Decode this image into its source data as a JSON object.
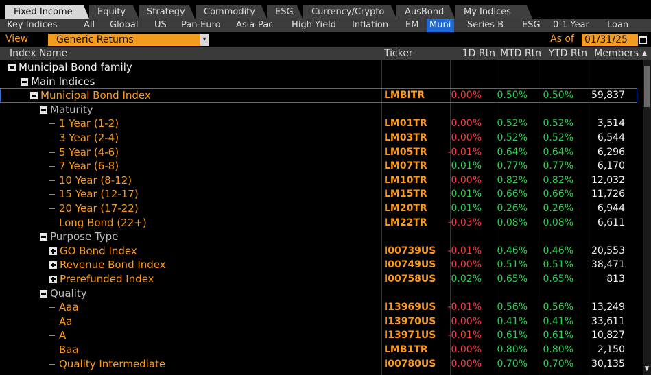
{
  "tabs": [
    "Fixed Income",
    "Equity",
    "Strategy",
    "Commodity",
    "ESG",
    "Currency/Crypto",
    "AusBond",
    "My Indices"
  ],
  "active_tab": "Fixed Income",
  "subnav": [
    "Key Indices",
    "All",
    "Global",
    "US",
    "Pan-Euro",
    "Asia-Pac",
    "High Yield",
    "Inflation",
    "EM",
    "Muni",
    "Series-B",
    "ESG",
    "0-1 Year",
    "Loan"
  ],
  "active_subnav": "Muni",
  "view": {
    "label": "View",
    "value": "Generic Returns"
  },
  "asof": {
    "label": "As of",
    "date": "01/31/25"
  },
  "columns": {
    "name": "Index Name",
    "ticker": "Ticker",
    "d1": "1D Rtn",
    "mtd": "MTD Rtn",
    "ytd": "YTD Rtn",
    "members": "Members"
  },
  "rows": [
    {
      "name": "Municipal Bond family",
      "level": 0,
      "expander": "minus",
      "color": "white"
    },
    {
      "name": "Main Indices",
      "level": 1,
      "expander": "minus",
      "color": "white"
    },
    {
      "name": "Municipal Bond Index",
      "level": 2,
      "expander": "minus",
      "color": "orange",
      "ticker": "LMBITR",
      "d1": "0.00%",
      "mtd": "0.50%",
      "ytd": "0.50%",
      "members": "59,837",
      "selected": true
    },
    {
      "name": "Maturity",
      "level": 3,
      "expander": "minus",
      "color": "grey"
    },
    {
      "name": "1 Year (1-2)",
      "level": 4,
      "color": "orange",
      "ticker": "LM01TR",
      "d1": "0.00%",
      "mtd": "0.52%",
      "ytd": "0.52%",
      "members": "3,514"
    },
    {
      "name": "3 Year (2-4)",
      "level": 4,
      "color": "orange",
      "ticker": "LM03TR",
      "d1": "0.00%",
      "mtd": "0.52%",
      "ytd": "0.52%",
      "members": "6,544"
    },
    {
      "name": "5 Year (4-6)",
      "level": 4,
      "color": "orange",
      "ticker": "LM05TR",
      "d1": "-0.01%",
      "mtd": "0.64%",
      "ytd": "0.64%",
      "members": "6,296"
    },
    {
      "name": "7 Year (6-8)",
      "level": 4,
      "color": "orange",
      "ticker": "LM07TR",
      "d1": "0.01%",
      "mtd": "0.77%",
      "ytd": "0.77%",
      "members": "6,170"
    },
    {
      "name": "10 Year (8-12)",
      "level": 4,
      "color": "orange",
      "ticker": "LM10TR",
      "d1": "0.00%",
      "mtd": "0.82%",
      "ytd": "0.82%",
      "members": "12,032"
    },
    {
      "name": "15 Year (12-17)",
      "level": 4,
      "color": "orange",
      "ticker": "LM15TR",
      "d1": "0.01%",
      "mtd": "0.66%",
      "ytd": "0.66%",
      "members": "11,726"
    },
    {
      "name": "20 Year (17-22)",
      "level": 4,
      "color": "orange",
      "ticker": "LM20TR",
      "d1": "0.01%",
      "mtd": "0.26%",
      "ytd": "0.26%",
      "members": "6,944"
    },
    {
      "name": "Long Bond (22+)",
      "level": 4,
      "color": "orange",
      "ticker": "LM22TR",
      "d1": "-0.03%",
      "mtd": "0.08%",
      "ytd": "0.08%",
      "members": "6,611"
    },
    {
      "name": "Purpose Type",
      "level": 3,
      "expander": "minus",
      "color": "grey"
    },
    {
      "name": "GO Bond Index",
      "level": 4,
      "expander": "plus",
      "color": "orange",
      "ticker": "I00739US",
      "d1": "-0.01%",
      "mtd": "0.46%",
      "ytd": "0.46%",
      "members": "20,553"
    },
    {
      "name": "Revenue Bond Index",
      "level": 4,
      "expander": "plus",
      "color": "orange",
      "ticker": "I00749US",
      "d1": "0.00%",
      "mtd": "0.51%",
      "ytd": "0.51%",
      "members": "38,471"
    },
    {
      "name": "Prerefunded Index",
      "level": 4,
      "expander": "plus",
      "color": "orange",
      "ticker": "I00758US",
      "d1": "0.02%",
      "mtd": "0.65%",
      "ytd": "0.65%",
      "members": "813"
    },
    {
      "name": "Quality",
      "level": 3,
      "expander": "minus",
      "color": "grey"
    },
    {
      "name": "Aaa",
      "level": 4,
      "color": "orange",
      "ticker": "I13969US",
      "d1": "-0.01%",
      "mtd": "0.56%",
      "ytd": "0.56%",
      "members": "13,249"
    },
    {
      "name": "Aa",
      "level": 4,
      "color": "orange",
      "ticker": "I13970US",
      "d1": "0.00%",
      "mtd": "0.41%",
      "ytd": "0.41%",
      "members": "33,611"
    },
    {
      "name": "A",
      "level": 4,
      "color": "orange",
      "ticker": "I13971US",
      "d1": "-0.01%",
      "mtd": "0.61%",
      "ytd": "0.61%",
      "members": "10,827"
    },
    {
      "name": "Baa",
      "level": 4,
      "color": "orange",
      "ticker": "LMB1TR",
      "d1": "0.00%",
      "mtd": "0.80%",
      "ytd": "0.80%",
      "members": "2,150"
    },
    {
      "name": "Quality Intermediate",
      "level": 4,
      "color": "orange",
      "ticker": "I00780US",
      "d1": "0.00%",
      "mtd": "0.70%",
      "ytd": "0.70%",
      "members": "30,135"
    }
  ],
  "colors": {
    "orange": "#ff9a1a",
    "positive": "#29d24b",
    "negative": "#ff3b3b",
    "select_blue": "#1e6bd6"
  }
}
